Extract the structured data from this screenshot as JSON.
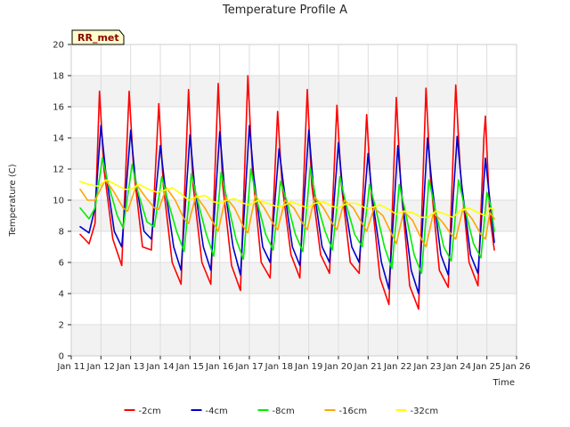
{
  "chart_data": {
    "type": "line",
    "title": "Temperature Profile A",
    "xlabel": "Time",
    "ylabel": "Temperature (C)",
    "badge": "RR_met",
    "xlim": [
      11,
      26
    ],
    "ylim": [
      0,
      20
    ],
    "x_ticks": [
      11,
      12,
      13,
      14,
      15,
      16,
      17,
      18,
      19,
      20,
      21,
      22,
      23,
      24,
      25,
      26
    ],
    "x_tick_labels": [
      "Jan 11",
      "Jan 12",
      "Jan 13",
      "Jan 14",
      "Jan 15",
      "Jan 16",
      "Jan 17",
      "Jan 18",
      "Jan 19",
      "Jan 20",
      "Jan 21",
      "Jan 22",
      "Jan 23",
      "Jan 24",
      "Jan 25",
      "Jan 26"
    ],
    "y_ticks": [
      0,
      2,
      4,
      6,
      8,
      10,
      12,
      14,
      16,
      18,
      20
    ],
    "grid": true,
    "legend_position": "bottom",
    "series": [
      {
        "name": "-2cm",
        "color": "#ff0000",
        "points": [
          [
            11.3,
            7.8
          ],
          [
            11.6,
            7.2
          ],
          [
            11.8,
            8.5
          ],
          [
            11.95,
            17.0
          ],
          [
            12.1,
            12.0
          ],
          [
            12.4,
            7.5
          ],
          [
            12.7,
            5.8
          ],
          [
            12.95,
            17.0
          ],
          [
            13.1,
            12.0
          ],
          [
            13.4,
            7.0
          ],
          [
            13.7,
            6.8
          ],
          [
            13.95,
            16.2
          ],
          [
            14.1,
            11.0
          ],
          [
            14.4,
            6.0
          ],
          [
            14.7,
            4.6
          ],
          [
            14.95,
            17.1
          ],
          [
            15.1,
            11.0
          ],
          [
            15.4,
            6.0
          ],
          [
            15.7,
            4.6
          ],
          [
            15.95,
            17.5
          ],
          [
            16.1,
            11.0
          ],
          [
            16.4,
            5.8
          ],
          [
            16.7,
            4.2
          ],
          [
            16.95,
            18.0
          ],
          [
            17.1,
            12.0
          ],
          [
            17.4,
            6.0
          ],
          [
            17.7,
            5.0
          ],
          [
            17.95,
            15.7
          ],
          [
            18.1,
            11.0
          ],
          [
            18.4,
            6.5
          ],
          [
            18.7,
            5.0
          ],
          [
            18.95,
            17.1
          ],
          [
            19.1,
            11.0
          ],
          [
            19.4,
            6.5
          ],
          [
            19.7,
            5.3
          ],
          [
            19.95,
            16.1
          ],
          [
            20.1,
            11.0
          ],
          [
            20.4,
            6.0
          ],
          [
            20.7,
            5.3
          ],
          [
            20.95,
            15.5
          ],
          [
            21.1,
            10.5
          ],
          [
            21.4,
            5.0
          ],
          [
            21.7,
            3.3
          ],
          [
            21.95,
            16.6
          ],
          [
            22.1,
            11.0
          ],
          [
            22.4,
            4.5
          ],
          [
            22.7,
            3.0
          ],
          [
            22.95,
            17.2
          ],
          [
            23.1,
            11.5
          ],
          [
            23.4,
            5.5
          ],
          [
            23.7,
            4.4
          ],
          [
            23.95,
            17.4
          ],
          [
            24.1,
            12.0
          ],
          [
            24.4,
            6.0
          ],
          [
            24.7,
            4.5
          ],
          [
            24.9,
            14.0
          ],
          [
            24.95,
            15.4
          ],
          [
            25.1,
            9.0
          ],
          [
            25.25,
            6.8
          ]
        ]
      },
      {
        "name": "-4cm",
        "color": "#0000cc",
        "points": [
          [
            11.3,
            8.3
          ],
          [
            11.6,
            7.9
          ],
          [
            11.8,
            9.5
          ],
          [
            12.0,
            14.8
          ],
          [
            12.15,
            12.0
          ],
          [
            12.45,
            8.0
          ],
          [
            12.7,
            7.0
          ],
          [
            13.0,
            14.5
          ],
          [
            13.15,
            11.5
          ],
          [
            13.45,
            8.0
          ],
          [
            13.7,
            7.5
          ],
          [
            14.0,
            13.5
          ],
          [
            14.15,
            11.0
          ],
          [
            14.45,
            7.0
          ],
          [
            14.7,
            5.5
          ],
          [
            15.0,
            14.2
          ],
          [
            15.15,
            11.0
          ],
          [
            15.45,
            7.0
          ],
          [
            15.7,
            5.5
          ],
          [
            16.0,
            14.4
          ],
          [
            16.15,
            11.0
          ],
          [
            16.45,
            7.0
          ],
          [
            16.7,
            5.2
          ],
          [
            17.0,
            14.8
          ],
          [
            17.15,
            11.5
          ],
          [
            17.45,
            7.0
          ],
          [
            17.7,
            6.0
          ],
          [
            18.0,
            13.3
          ],
          [
            18.15,
            11.0
          ],
          [
            18.45,
            7.0
          ],
          [
            18.7,
            5.8
          ],
          [
            19.0,
            14.5
          ],
          [
            19.15,
            11.0
          ],
          [
            19.45,
            7.0
          ],
          [
            19.7,
            6.0
          ],
          [
            20.0,
            13.7
          ],
          [
            20.15,
            10.5
          ],
          [
            20.45,
            7.0
          ],
          [
            20.7,
            6.0
          ],
          [
            21.0,
            13.0
          ],
          [
            21.15,
            10.0
          ],
          [
            21.45,
            6.0
          ],
          [
            21.7,
            4.3
          ],
          [
            22.0,
            13.5
          ],
          [
            22.15,
            10.0
          ],
          [
            22.45,
            5.5
          ],
          [
            22.7,
            4.0
          ],
          [
            23.0,
            14.0
          ],
          [
            23.15,
            11.0
          ],
          [
            23.45,
            6.5
          ],
          [
            23.7,
            5.2
          ],
          [
            24.0,
            14.1
          ],
          [
            24.15,
            11.0
          ],
          [
            24.45,
            6.5
          ],
          [
            24.7,
            5.3
          ],
          [
            24.95,
            12.7
          ],
          [
            25.1,
            10.0
          ],
          [
            25.25,
            7.3
          ]
        ]
      },
      {
        "name": "-8cm",
        "color": "#00ee00",
        "points": [
          [
            11.3,
            9.5
          ],
          [
            11.6,
            8.8
          ],
          [
            11.8,
            9.5
          ],
          [
            12.05,
            12.7
          ],
          [
            12.25,
            11.0
          ],
          [
            12.55,
            9.0
          ],
          [
            12.75,
            8.2
          ],
          [
            13.05,
            12.3
          ],
          [
            13.25,
            10.5
          ],
          [
            13.55,
            8.6
          ],
          [
            13.8,
            8.3
          ],
          [
            14.05,
            11.5
          ],
          [
            14.25,
            10.0
          ],
          [
            14.55,
            8.0
          ],
          [
            14.8,
            6.7
          ],
          [
            15.05,
            11.7
          ],
          [
            15.25,
            10.0
          ],
          [
            15.55,
            7.8
          ],
          [
            15.8,
            6.4
          ],
          [
            16.05,
            11.8
          ],
          [
            16.25,
            10.0
          ],
          [
            16.55,
            7.5
          ],
          [
            16.8,
            6.2
          ],
          [
            17.05,
            12.0
          ],
          [
            17.25,
            10.0
          ],
          [
            17.55,
            7.8
          ],
          [
            17.8,
            6.8
          ],
          [
            18.05,
            11.2
          ],
          [
            18.25,
            10.0
          ],
          [
            18.55,
            7.8
          ],
          [
            18.8,
            6.7
          ],
          [
            19.05,
            12.1
          ],
          [
            19.25,
            10.0
          ],
          [
            19.55,
            8.0
          ],
          [
            19.8,
            6.8
          ],
          [
            20.05,
            11.5
          ],
          [
            20.25,
            9.8
          ],
          [
            20.55,
            7.8
          ],
          [
            20.8,
            7.0
          ],
          [
            21.05,
            11.0
          ],
          [
            21.25,
            9.5
          ],
          [
            21.55,
            7.0
          ],
          [
            21.8,
            5.6
          ],
          [
            22.05,
            11.0
          ],
          [
            22.25,
            9.3
          ],
          [
            22.55,
            6.5
          ],
          [
            22.8,
            5.3
          ],
          [
            23.05,
            11.3
          ],
          [
            23.25,
            9.5
          ],
          [
            23.55,
            7.0
          ],
          [
            23.8,
            6.1
          ],
          [
            24.05,
            11.3
          ],
          [
            24.25,
            9.5
          ],
          [
            24.55,
            7.2
          ],
          [
            24.8,
            6.3
          ],
          [
            25.0,
            10.5
          ],
          [
            25.15,
            9.5
          ],
          [
            25.25,
            8.0
          ]
        ]
      },
      {
        "name": "-16cm",
        "color": "#ffa500",
        "points": [
          [
            11.3,
            10.7
          ],
          [
            11.55,
            10.0
          ],
          [
            11.8,
            10.0
          ],
          [
            12.15,
            11.3
          ],
          [
            12.45,
            10.5
          ],
          [
            12.75,
            9.5
          ],
          [
            12.9,
            9.3
          ],
          [
            13.2,
            11.0
          ],
          [
            13.5,
            10.2
          ],
          [
            13.8,
            9.5
          ],
          [
            13.95,
            9.4
          ],
          [
            14.2,
            10.8
          ],
          [
            14.5,
            10.0
          ],
          [
            14.8,
            8.8
          ],
          [
            14.95,
            8.5
          ],
          [
            15.2,
            10.3
          ],
          [
            15.5,
            9.5
          ],
          [
            15.8,
            8.5
          ],
          [
            15.95,
            8.0
          ],
          [
            16.2,
            10.2
          ],
          [
            16.5,
            9.5
          ],
          [
            16.8,
            8.3
          ],
          [
            16.95,
            7.9
          ],
          [
            17.2,
            10.3
          ],
          [
            17.5,
            9.5
          ],
          [
            17.8,
            8.5
          ],
          [
            17.95,
            8.1
          ],
          [
            18.2,
            10.0
          ],
          [
            18.5,
            9.5
          ],
          [
            18.8,
            8.5
          ],
          [
            18.95,
            8.1
          ],
          [
            19.2,
            10.2
          ],
          [
            19.5,
            9.5
          ],
          [
            19.8,
            8.5
          ],
          [
            19.95,
            8.1
          ],
          [
            20.2,
            10.0
          ],
          [
            20.5,
            9.5
          ],
          [
            20.8,
            8.5
          ],
          [
            20.95,
            8.0
          ],
          [
            21.2,
            9.5
          ],
          [
            21.5,
            9.0
          ],
          [
            21.8,
            7.8
          ],
          [
            21.95,
            7.2
          ],
          [
            22.2,
            9.3
          ],
          [
            22.5,
            8.7
          ],
          [
            22.8,
            7.5
          ],
          [
            22.95,
            7.0
          ],
          [
            23.2,
            9.2
          ],
          [
            23.5,
            8.6
          ],
          [
            23.8,
            7.8
          ],
          [
            23.95,
            7.5
          ],
          [
            24.2,
            9.5
          ],
          [
            24.5,
            8.8
          ],
          [
            24.8,
            7.8
          ],
          [
            24.95,
            7.5
          ],
          [
            25.1,
            9.2
          ],
          [
            25.25,
            8.8
          ]
        ]
      },
      {
        "name": "-32cm",
        "color": "#ffff00",
        "points": [
          [
            11.3,
            11.2
          ],
          [
            11.6,
            11.0
          ],
          [
            11.9,
            10.9
          ],
          [
            12.2,
            11.3
          ],
          [
            12.5,
            11.0
          ],
          [
            12.8,
            10.7
          ],
          [
            13.0,
            10.7
          ],
          [
            13.3,
            11.0
          ],
          [
            13.6,
            10.7
          ],
          [
            13.9,
            10.5
          ],
          [
            14.1,
            10.6
          ],
          [
            14.4,
            10.8
          ],
          [
            14.7,
            10.4
          ],
          [
            14.95,
            10.0
          ],
          [
            15.2,
            10.2
          ],
          [
            15.5,
            10.3
          ],
          [
            15.8,
            9.9
          ],
          [
            16.0,
            9.8
          ],
          [
            16.25,
            10.0
          ],
          [
            16.5,
            10.1
          ],
          [
            16.8,
            9.8
          ],
          [
            17.0,
            9.7
          ],
          [
            17.3,
            10.0
          ],
          [
            17.6,
            9.8
          ],
          [
            17.9,
            9.6
          ],
          [
            18.1,
            9.6
          ],
          [
            18.4,
            9.9
          ],
          [
            18.7,
            9.7
          ],
          [
            18.95,
            9.5
          ],
          [
            19.2,
            9.8
          ],
          [
            19.5,
            9.9
          ],
          [
            19.8,
            9.6
          ],
          [
            20.0,
            9.5
          ],
          [
            20.3,
            9.8
          ],
          [
            20.6,
            9.8
          ],
          [
            20.9,
            9.5
          ],
          [
            21.1,
            9.5
          ],
          [
            21.4,
            9.7
          ],
          [
            21.7,
            9.4
          ],
          [
            21.95,
            9.1
          ],
          [
            22.2,
            9.3
          ],
          [
            22.5,
            9.2
          ],
          [
            22.8,
            8.9
          ],
          [
            23.0,
            8.9
          ],
          [
            23.3,
            9.3
          ],
          [
            23.6,
            9.1
          ],
          [
            23.85,
            8.9
          ],
          [
            24.1,
            9.3
          ],
          [
            24.4,
            9.5
          ],
          [
            24.7,
            9.2
          ],
          [
            24.95,
            9.0
          ],
          [
            25.1,
            9.5
          ],
          [
            25.25,
            9.4
          ]
        ]
      }
    ]
  }
}
